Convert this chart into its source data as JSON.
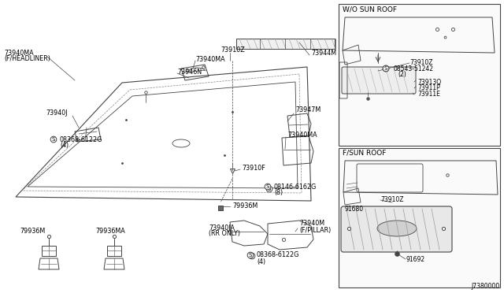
{
  "bg_color": "#ffffff",
  "line_color": "#444444",
  "text_color": "#000000",
  "diagram_number": "J7380000",
  "inset1_title": "W/O SUN ROOF",
  "inset2_title": "F/SUN ROOF"
}
